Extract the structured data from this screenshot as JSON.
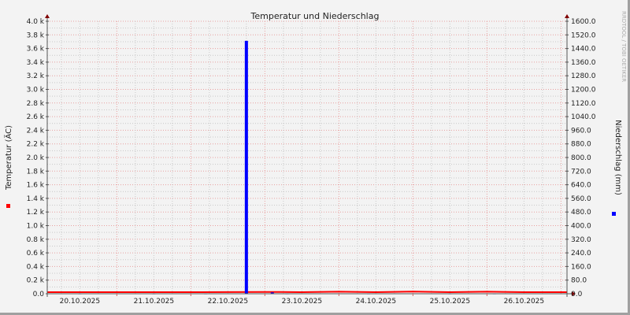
{
  "chart_data": {
    "type": "line+bar",
    "title": "Temperatur und Niederschlag",
    "ylabel_left": "Temperatur (ÄC)",
    "ylabel_right": "Niederschlag (mm)",
    "watermark": "RRDTOOL / TOBI OETIKER",
    "left_ticks": [
      "0.0",
      "0.2 k",
      "0.4 k",
      "0.6 k",
      "0.8 k",
      "1.0 k",
      "1.2 k",
      "1.4 k",
      "1.6 k",
      "1.8 k",
      "2.0 k",
      "2.2 k",
      "2.4 k",
      "2.6 k",
      "2.8 k",
      "3.0 k",
      "3.2 k",
      "3.4 k",
      "3.6 k",
      "3.8 k",
      "4.0 k"
    ],
    "right_ticks": [
      "0.0",
      "80.0",
      "160.0",
      "240.0",
      "320.0",
      "400.0",
      "480.0",
      "560.0",
      "640.0",
      "720.0",
      "800.0",
      "880.0",
      "960.0",
      "1040.0",
      "1120.0",
      "1200.0",
      "1280.0",
      "1360.0",
      "1440.0",
      "1520.0",
      "1600.0"
    ],
    "ylim_left": [
      0,
      4000
    ],
    "ylim_right": [
      0,
      1600
    ],
    "x_labels": [
      "20.10.2025",
      "21.10.2025",
      "22.10.2025",
      "23.10.2025",
      "24.10.2025",
      "25.10.2025",
      "26.10.2025"
    ],
    "grid": true,
    "colors": {
      "temperature": "#ff0000",
      "precipitation": "#0000ff",
      "major_grid": "#e8a0a0",
      "minor_grid": "#c8c8c8",
      "axis": "#800000"
    },
    "series": [
      {
        "name": "Temperatur",
        "axis": "left",
        "type": "line",
        "x_days": [
          0,
          0.5,
          1,
          1.5,
          2,
          2.5,
          3,
          3.2,
          3.5,
          4,
          4.5,
          5,
          5.5,
          6,
          6.5,
          7
        ],
        "values": [
          12,
          12,
          12,
          12,
          12,
          13,
          14,
          14,
          12,
          18,
          12,
          20,
          12,
          18,
          12,
          12
        ]
      },
      {
        "name": "Niederschlag",
        "axis": "right",
        "type": "bar",
        "x_days": [
          0.5,
          1.5,
          2.2,
          2.75,
          3.1,
          3.3,
          4.4,
          5.5,
          6.1
        ],
        "values": [
          2,
          2,
          2,
          1485,
          8,
          2,
          2,
          2,
          2
        ]
      }
    ]
  }
}
